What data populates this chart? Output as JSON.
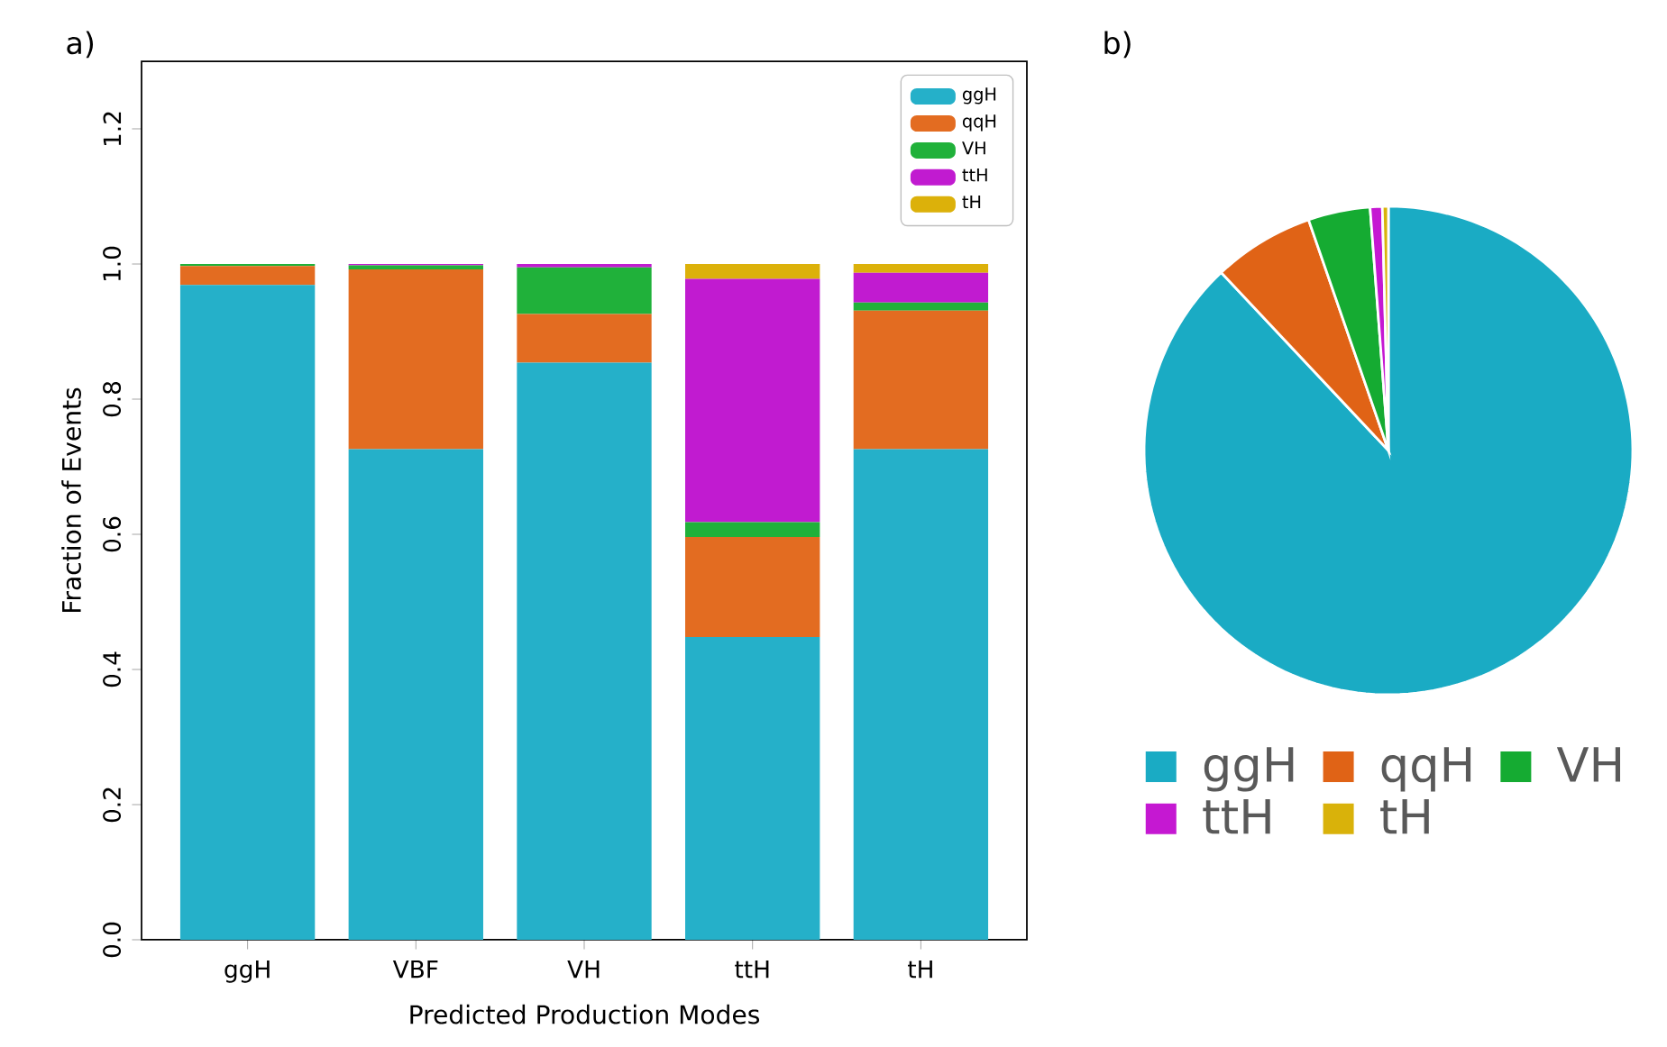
{
  "chart_data": [
    {
      "type": "bar",
      "stacked": true,
      "annotations": [
        "a)"
      ],
      "xlabel": "Predicted Production Modes",
      "ylabel": "Fraction of Events",
      "categories": [
        "ggH",
        "VBF",
        "VH",
        "ttH",
        "tH"
      ],
      "series": [
        {
          "name": "ggH",
          "color": "#25b0c9",
          "values": [
            0.969,
            0.726,
            0.854,
            0.448,
            0.726
          ]
        },
        {
          "name": "qqH",
          "color": "#e36c21",
          "values": [
            0.028,
            0.266,
            0.072,
            0.148,
            0.205
          ]
        },
        {
          "name": "VH",
          "color": "#20b13a",
          "values": [
            0.003,
            0.006,
            0.069,
            0.022,
            0.012
          ]
        },
        {
          "name": "ttH",
          "color": "#c11bd0",
          "values": [
            0,
            0.002,
            0.005,
            0.36,
            0.044
          ]
        },
        {
          "name": "tH",
          "color": "#dcb10a",
          "values": [
            0,
            0,
            0,
            0.022,
            0.013
          ]
        }
      ],
      "ylim": [
        0,
        1.3
      ],
      "yticks": [
        {
          "value": 0,
          "label": "0.0"
        },
        {
          "value": 0.2,
          "label": "0.2"
        },
        {
          "value": 0.4,
          "label": "0.4"
        },
        {
          "value": 0.6,
          "label": "0.6"
        },
        {
          "value": 0.8,
          "label": "0.8"
        },
        {
          "value": 1.0,
          "label": "1.0"
        },
        {
          "value": 1.2,
          "label": "1.2"
        }
      ],
      "legend": "top right"
    },
    {
      "type": "pie",
      "annotations": [
        "b)"
      ],
      "categories": [
        "ggH",
        "qqH",
        "VH",
        "ttH",
        "tH"
      ],
      "values": [
        88,
        6.7,
        4.1,
        0.8,
        0.4
      ],
      "colors": [
        "#1aabc4",
        "#e06316",
        "#15ab32",
        "#c518d2",
        "#d9b20a"
      ],
      "legend": "bottom"
    }
  ]
}
